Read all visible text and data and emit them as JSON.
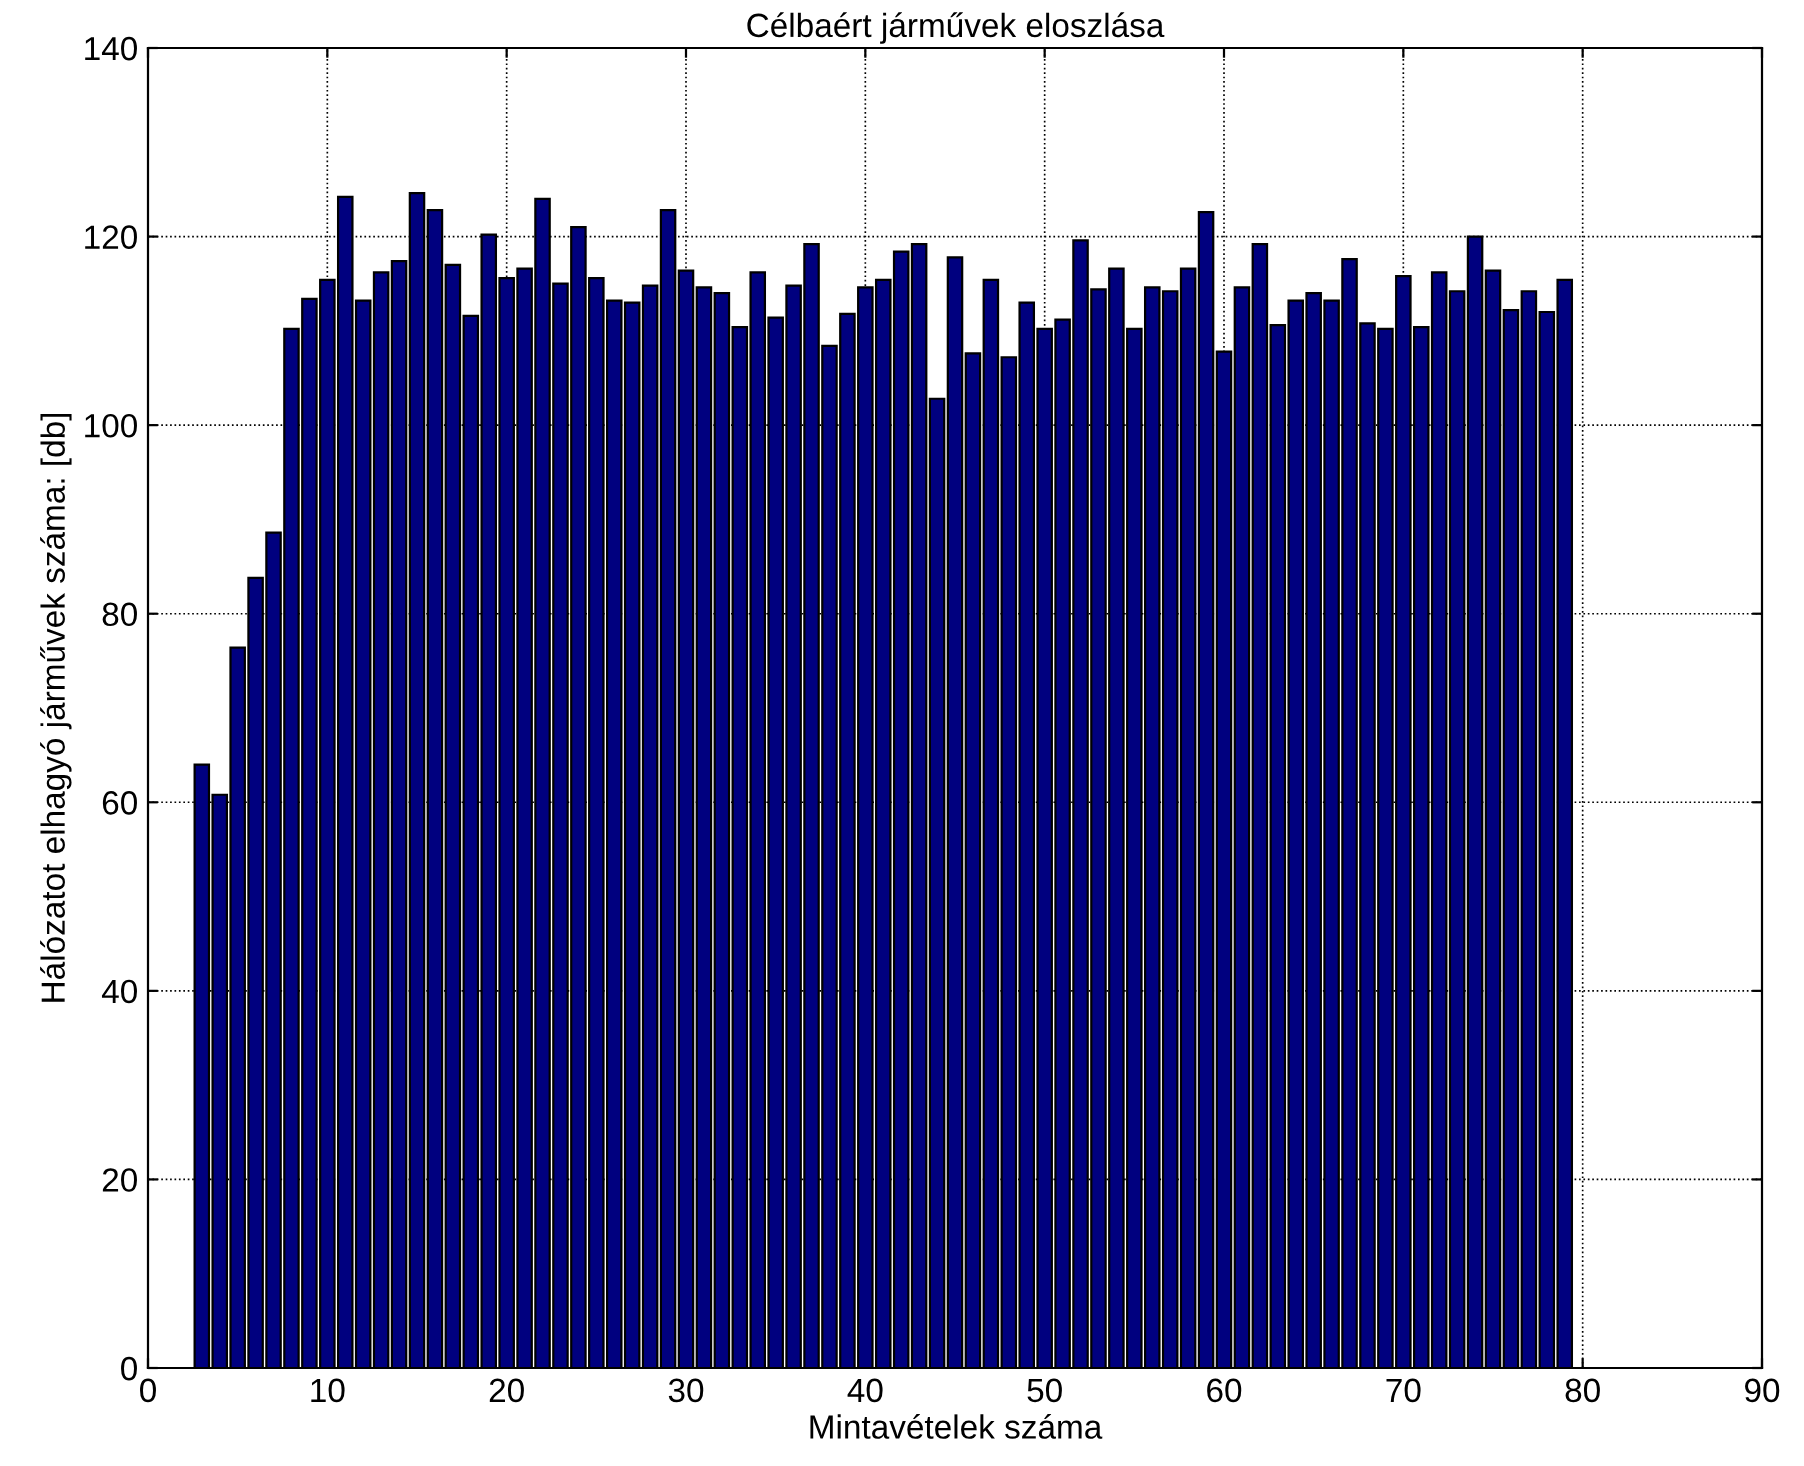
{
  "chart_data": {
    "type": "bar",
    "title": "Célbaért járművek eloszlása",
    "xlabel": "Mintavételek száma",
    "ylabel": "Hálózatot elhagyó járművek száma: [db]",
    "x": [
      3,
      4,
      5,
      6,
      7,
      8,
      9,
      10,
      11,
      12,
      13,
      14,
      15,
      16,
      17,
      18,
      19,
      20,
      21,
      22,
      23,
      24,
      25,
      26,
      27,
      28,
      29,
      30,
      31,
      32,
      33,
      34,
      35,
      36,
      37,
      38,
      39,
      40,
      41,
      42,
      43,
      44,
      45,
      46,
      47,
      48,
      49,
      50,
      51,
      52,
      53,
      54,
      55,
      56,
      57,
      58,
      59,
      60,
      61,
      62,
      63,
      64,
      65,
      66,
      67,
      68,
      69,
      70,
      71,
      72,
      73,
      74,
      75,
      76,
      77,
      78,
      79
    ],
    "values": [
      64,
      60.8,
      76.4,
      83.8,
      88.6,
      110.2,
      113.4,
      115.4,
      124.2,
      113.2,
      116.2,
      117.4,
      124.6,
      122.8,
      117,
      111.6,
      120.2,
      115.6,
      116.6,
      124,
      115,
      121,
      115.6,
      113.2,
      113,
      114.8,
      122.8,
      116.4,
      114.6,
      114,
      110.4,
      116.2,
      111.4,
      114.8,
      119.2,
      108.4,
      111.8,
      114.6,
      115.4,
      118.4,
      119.2,
      102.8,
      117.8,
      107.6,
      115.4,
      107.2,
      113,
      110.2,
      111.2,
      119.6,
      114.4,
      116.6,
      110.2,
      114.6,
      114.2,
      116.6,
      122.6,
      107.8,
      114.6,
      119.2,
      110.6,
      113.2,
      114,
      113.2,
      117.6,
      110.8,
      110.2,
      115.8,
      110.4,
      116.2,
      114.2,
      120,
      116.4,
      112.2,
      114.2,
      112,
      115.4
    ],
    "color": "#00007f",
    "xlim": [
      0,
      90
    ],
    "xticks": [
      0,
      10,
      20,
      30,
      40,
      50,
      60,
      70,
      80,
      90
    ],
    "ylim": [
      0,
      140
    ],
    "yticks": [
      0,
      20,
      40,
      60,
      80,
      100,
      120,
      140
    ],
    "grid": true,
    "line_style": "dotted"
  }
}
